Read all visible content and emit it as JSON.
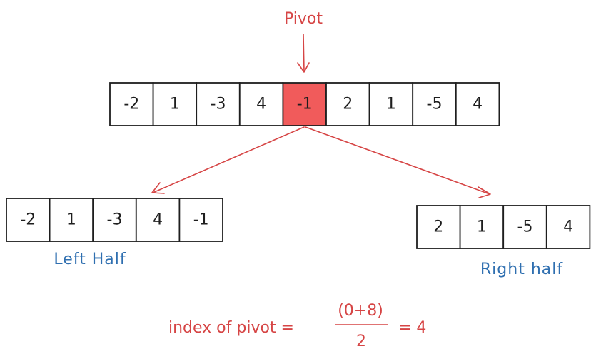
{
  "pivot_label": "Pivot",
  "colors": {
    "pivot_fill": "#f15b5b",
    "accent_red": "#d64545",
    "accent_blue": "#2f6fb0",
    "ink": "#1e1e1e"
  },
  "top_array": {
    "values": [
      "-2",
      "1",
      "-3",
      "4",
      "-1",
      "2",
      "1",
      "-5",
      "4"
    ],
    "pivot_index": 4
  },
  "left_half": {
    "label": "Left Half",
    "values": [
      "-2",
      "1",
      "-3",
      "4",
      "-1"
    ]
  },
  "right_half": {
    "label": "Right half",
    "values": [
      "2",
      "1",
      "-5",
      "4"
    ]
  },
  "formula": {
    "lhs": "index of pivot =",
    "numerator": "(0+8)",
    "denominator": "2",
    "rhs": "= 4"
  }
}
